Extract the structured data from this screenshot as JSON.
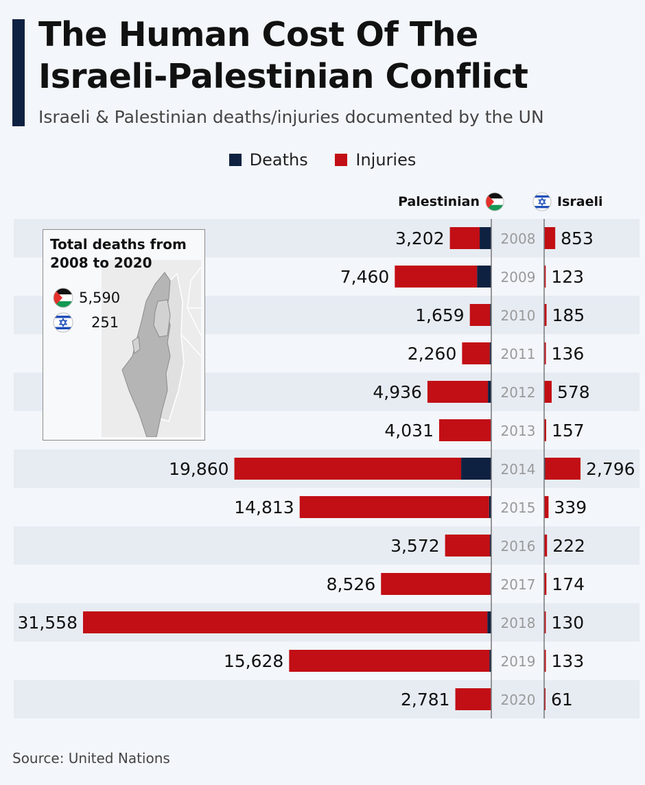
{
  "header": {
    "title_line1": "The Human Cost Of The",
    "title_line2": "Israeli-Palestinian Conflict",
    "subtitle": "Israeli & Palestinian deaths/injuries documented by the UN"
  },
  "legend": {
    "deaths": "Deaths",
    "injuries": "Injuries"
  },
  "columns": {
    "palestinian": "Palestinian",
    "israeli": "Israeli"
  },
  "inset": {
    "title_line1": "Total deaths from",
    "title_line2": "2008 to 2020",
    "palestinian_total": "5,590",
    "israeli_total": "251"
  },
  "source": "Source: United Nations",
  "colors": {
    "deaths": "#0f2141",
    "injuries": "#c20e15",
    "title_bar": "#0f2141",
    "stripe": "#e7ecf3"
  },
  "icons": [
    "palestinian-flag-icon",
    "israeli-flag-icon",
    "israel-map-icon"
  ],
  "chart_data": {
    "type": "bar",
    "orientation": "horizontal-diverging",
    "categories": [
      "2008",
      "2009",
      "2010",
      "2011",
      "2012",
      "2013",
      "2014",
      "2015",
      "2016",
      "2017",
      "2018",
      "2019",
      "2020"
    ],
    "series": [
      {
        "name": "Palestinian",
        "totals": [
          3202,
          7460,
          1659,
          2260,
          4936,
          4031,
          19860,
          14813,
          3572,
          8526,
          31558,
          15628,
          2781
        ],
        "total_labels": [
          "3,202",
          "7,460",
          "1,659",
          "2,260",
          "4,936",
          "4,031",
          "19,860",
          "14,813",
          "3,572",
          "8,526",
          "31,558",
          "15,628",
          "2,781"
        ],
        "deaths_approx": [
          900,
          1100,
          95,
          120,
          260,
          40,
          2330,
          170,
          110,
          75,
          300,
          140,
          30
        ]
      },
      {
        "name": "Israeli",
        "totals": [
          853,
          123,
          185,
          136,
          578,
          157,
          2796,
          339,
          222,
          174,
          130,
          133,
          61
        ],
        "total_labels": [
          "853",
          "123",
          "185",
          "136",
          "578",
          "157",
          "2,796",
          "339",
          "222",
          "174",
          "130",
          "133",
          "61"
        ],
        "deaths_approx": [
          35,
          9,
          9,
          11,
          6,
          6,
          72,
          25,
          15,
          15,
          14,
          10,
          3
        ]
      }
    ],
    "legend_placement": "top-center",
    "grid": false
  }
}
